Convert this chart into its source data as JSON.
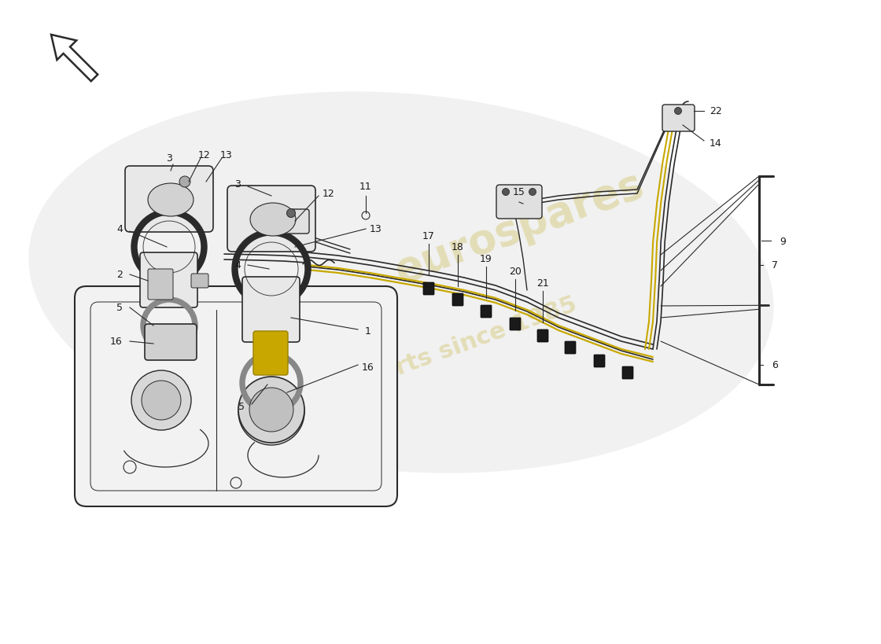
{
  "bg": "#ffffff",
  "lc": "#2a2a2a",
  "wm_color": "#cfc060",
  "wm_alpha": 0.4,
  "wm1": "eurospares",
  "wm2": "a motor parts since 1985",
  "label_fs": 9,
  "label_color": "#1a1a1a",
  "tank_fill": "#f2f2f2",
  "part_fill": "#e8e8e8",
  "part_fill2": "#d8d8d8",
  "fuel_yellow": "#c8a800",
  "clip_color": "#1a1a1a",
  "silhouette_fill": "#e6e6e6",
  "silhouette_alpha": 0.55
}
